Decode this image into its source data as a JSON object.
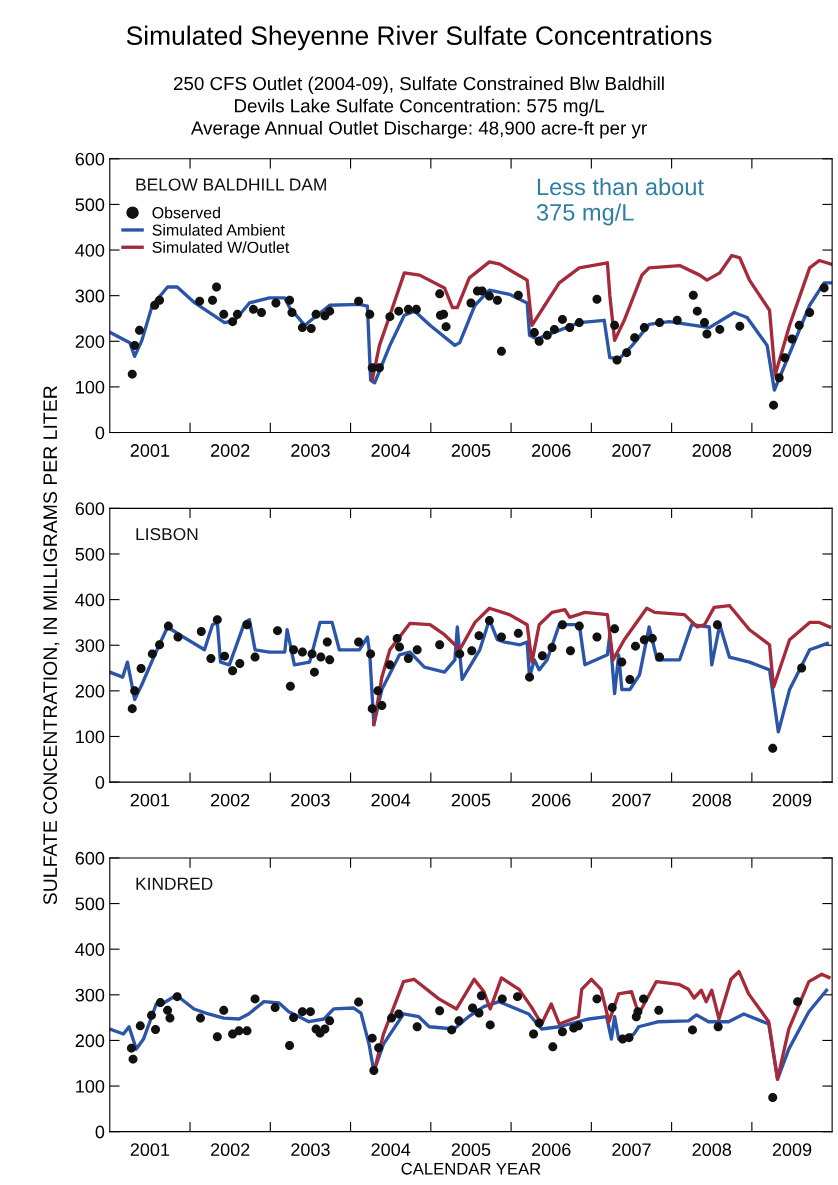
{
  "chart_data": [
    {
      "type": "line",
      "title": "Simulated Sheyenne River Sulfate Concentrations",
      "subtitle": "250 CFS Outlet (2004-09), Sulfate Constrained Blw Baldhill\nDevils Lake Sulfate Concentration: 575 mg/L\nAverage Annual Outlet Discharge: 48,900 acre-ft per yr",
      "annotations": [
        "BELOW BALDHILL DAM",
        "Less than about\n375 mg/L"
      ],
      "xlim": [
        2001,
        2010
      ],
      "ylim": [
        0,
        600
      ],
      "yticks": [
        0,
        100,
        200,
        300,
        400,
        500,
        600
      ],
      "xticks": [
        {
          "value": 2001.5,
          "label": "2001"
        },
        {
          "value": 2002,
          "label": null
        },
        {
          "value": 2002.5,
          "label": "2002"
        },
        {
          "value": 2003,
          "label": null
        },
        {
          "value": 2003.5,
          "label": "2003"
        },
        {
          "value": 2004,
          "label": null
        },
        {
          "value": 2004.5,
          "label": "2004"
        },
        {
          "value": 2005,
          "label": null
        },
        {
          "value": 2005.5,
          "label": "2005"
        },
        {
          "value": 2006,
          "label": null
        },
        {
          "value": 2006.5,
          "label": "2006"
        },
        {
          "value": 2007,
          "label": null
        },
        {
          "value": 2007.5,
          "label": "2007"
        },
        {
          "value": 2008,
          "label": null
        },
        {
          "value": 2008.5,
          "label": "2008"
        },
        {
          "value": 2009,
          "label": null
        },
        {
          "value": 2009.5,
          "label": "2009"
        }
      ],
      "grid": false,
      "legend": "top left",
      "series": [
        {
          "name": "Observed",
          "type": "scatter",
          "marker": "circle",
          "color": "#111111",
          "x": [
            2001.28,
            2001.31,
            2001.37,
            2001.56,
            2001.62,
            2002.12,
            2002.28,
            2002.33,
            2002.42,
            2002.53,
            2002.59,
            2002.79,
            2002.89,
            2003.07,
            2003.24,
            2003.27,
            2003.4,
            2003.51,
            2003.57,
            2003.68,
            2003.74,
            2004.1,
            2004.24,
            2004.27,
            2004.36,
            2004.49,
            2004.6,
            2004.72,
            2004.82,
            2005.11,
            2005.12,
            2005.16,
            2005.19,
            2005.5,
            2005.58,
            2005.64,
            2005.73,
            2005.83,
            2005.88,
            2006.09,
            2006.29,
            2006.35,
            2006.45,
            2006.54,
            2006.64,
            2006.73,
            2006.85,
            2007.07,
            2007.29,
            2007.32,
            2007.44,
            2007.54,
            2007.66,
            2007.85,
            2008.07,
            2008.27,
            2008.32,
            2008.41,
            2008.44,
            2008.6,
            2008.85,
            2009.27,
            2009.34,
            2009.41,
            2009.5,
            2009.59,
            2009.72,
            2009.9
          ],
          "values": [
            128,
            191,
            224,
            279,
            290,
            288,
            290,
            319,
            259,
            243,
            259,
            270,
            263,
            284,
            290,
            263,
            230,
            228,
            259,
            256,
            266,
            288,
            259,
            142,
            142,
            254,
            266,
            270,
            270,
            304,
            257,
            259,
            232,
            284,
            310,
            310,
            299,
            290,
            178,
            301,
            219,
            200,
            213,
            226,
            248,
            230,
            241,
            292,
            235,
            159,
            175,
            208,
            230,
            241,
            246,
            301,
            266,
            241,
            216,
            226,
            233,
            60,
            120,
            164,
            205,
            235,
            263,
            317
          ]
        },
        {
          "name": "Simulated Ambient",
          "color": "#2b55a8",
          "x": [
            2001.0,
            2001.25,
            2001.31,
            2001.4,
            2001.53,
            2001.72,
            2001.84,
            2002.06,
            2002.43,
            2002.56,
            2002.74,
            2002.99,
            2003.18,
            2003.24,
            2003.43,
            2003.55,
            2003.74,
            2004.11,
            2004.21,
            2004.25,
            2004.3,
            2004.49,
            2004.67,
            2004.8,
            2004.99,
            2005.3,
            2005.36,
            2005.55,
            2005.73,
            2005.98,
            2006.2,
            2006.23,
            2006.32,
            2006.6,
            2006.85,
            2007.16,
            2007.23,
            2007.35,
            2007.51,
            2007.72,
            2007.97,
            2008.47,
            2008.78,
            2008.94,
            2009.19,
            2009.28,
            2009.41,
            2009.72,
            2009.9,
            2009.99
          ],
          "values": [
            220,
            197,
            167,
            202,
            279,
            319,
            319,
            284,
            241,
            246,
            284,
            295,
            295,
            274,
            235,
            252,
            279,
            281,
            277,
            115,
            109,
            191,
            257,
            266,
            235,
            191,
            197,
            279,
            312,
            303,
            284,
            213,
            205,
            224,
            241,
            246,
            164,
            162,
            191,
            237,
            243,
            230,
            263,
            252,
            191,
            93,
            148,
            279,
            328,
            328
          ]
        },
        {
          "name": "Simulated W/Outlet",
          "color": "#a52a3a",
          "x": [
            2004.27,
            2004.36,
            2004.49,
            2004.67,
            2004.86,
            2005.17,
            2005.27,
            2005.33,
            2005.48,
            2005.73,
            2005.86,
            2006.2,
            2006.26,
            2006.42,
            2006.6,
            2006.85,
            2007.2,
            2007.23,
            2007.29,
            2007.41,
            2007.63,
            2007.72,
            2008.1,
            2008.35,
            2008.44,
            2008.6,
            2008.75,
            2008.85,
            2008.97,
            2009.22,
            2009.29,
            2009.47,
            2009.72,
            2009.84,
            2009.99
          ],
          "values": [
            115,
            191,
            257,
            350,
            345,
            317,
            274,
            274,
            339,
            374,
            369,
            334,
            235,
            279,
            328,
            361,
            372,
            301,
            202,
            246,
            345,
            361,
            366,
            345,
            334,
            350,
            388,
            383,
            334,
            268,
            126,
            235,
            361,
            377,
            369
          ]
        }
      ]
    },
    {
      "type": "line",
      "ylabel": "SULFATE CONCENTRATION, IN MILLIGRAMS PER LITER",
      "annotations": [
        "LISBON"
      ],
      "xlim": [
        2001,
        2010
      ],
      "ylim": [
        0,
        600
      ],
      "yticks": [
        0,
        100,
        200,
        300,
        400,
        500,
        600
      ],
      "xticks": [
        {
          "value": 2001.5,
          "label": "2001"
        },
        {
          "value": 2002,
          "label": null
        },
        {
          "value": 2002.5,
          "label": "2002"
        },
        {
          "value": 2003,
          "label": null
        },
        {
          "value": 2003.5,
          "label": "2003"
        },
        {
          "value": 2004,
          "label": null
        },
        {
          "value": 2004.5,
          "label": "2004"
        },
        {
          "value": 2005,
          "label": null
        },
        {
          "value": 2005.5,
          "label": "2005"
        },
        {
          "value": 2006,
          "label": null
        },
        {
          "value": 2006.5,
          "label": "2006"
        },
        {
          "value": 2007,
          "label": null
        },
        {
          "value": 2007.5,
          "label": "2007"
        },
        {
          "value": 2008,
          "label": null
        },
        {
          "value": 2008.5,
          "label": "2008"
        },
        {
          "value": 2009,
          "label": null
        },
        {
          "value": 2009.5,
          "label": "2009"
        }
      ],
      "grid": false,
      "series": [
        {
          "type": "scatter",
          "marker": "circle",
          "color": "#111111",
          "x": [
            2001.28,
            2001.31,
            2001.39,
            2001.53,
            2001.62,
            2001.73,
            2001.85,
            2002.14,
            2002.26,
            2002.34,
            2002.43,
            2002.53,
            2002.62,
            2002.71,
            2002.81,
            2003.09,
            2003.25,
            2003.29,
            2003.4,
            2003.52,
            2003.55,
            2003.63,
            2003.71,
            2003.74,
            2004.1,
            2004.25,
            2004.27,
            2004.34,
            2004.39,
            2004.49,
            2004.58,
            2004.61,
            2004.72,
            2004.83,
            2005.11,
            2005.36,
            2005.51,
            2005.6,
            2005.73,
            2005.88,
            2006.09,
            2006.23,
            2006.39,
            2006.51,
            2006.64,
            2006.74,
            2006.85,
            2007.07,
            2007.29,
            2007.38,
            2007.48,
            2007.55,
            2007.66,
            2007.76,
            2007.85,
            2008.57,
            2009.26,
            2009.62
          ],
          "values": [
            161,
            200,
            249,
            281,
            301,
            342,
            318,
            330,
            271,
            356,
            276,
            244,
            260,
            345,
            274,
            332,
            210,
            290,
            285,
            281,
            241,
            274,
            307,
            268,
            307,
            281,
            161,
            200,
            168,
            257,
            315,
            296,
            271,
            290,
            301,
            281,
            288,
            321,
            354,
            318,
            326,
            230,
            277,
            295,
            345,
            288,
            342,
            318,
            336,
            263,
            225,
            298,
            312,
            315,
            274,
            345,
            74,
            250
          ]
        },
        {
          "color": "#2b55a8",
          "x": [
            2001.0,
            2001.16,
            2001.22,
            2001.31,
            2001.4,
            2001.56,
            2001.72,
            2001.87,
            2002.18,
            2002.28,
            2002.34,
            2002.38,
            2002.49,
            2002.68,
            2002.74,
            2002.81,
            2002.99,
            2003.18,
            2003.21,
            2003.3,
            2003.49,
            2003.62,
            2003.77,
            2003.86,
            2004.11,
            2004.21,
            2004.24,
            2004.29,
            2004.39,
            2004.61,
            2004.74,
            2004.92,
            2005.17,
            2005.3,
            2005.33,
            2005.39,
            2005.61,
            2005.73,
            2005.83,
            2005.92,
            2006.11,
            2006.2,
            2006.23,
            2006.29,
            2006.35,
            2006.45,
            2006.6,
            2006.85,
            2006.92,
            2007.2,
            2007.23,
            2007.29,
            2007.34,
            2007.38,
            2007.48,
            2007.6,
            2007.72,
            2007.82,
            2008.1,
            2008.25,
            2008.47,
            2008.5,
            2008.6,
            2008.72,
            2008.97,
            2009.22,
            2009.33,
            2009.47,
            2009.72,
            2009.94
          ],
          "values": [
            241,
            230,
            263,
            181,
            214,
            279,
            340,
            323,
            290,
            345,
            350,
            263,
            257,
            350,
            356,
            290,
            285,
            285,
            334,
            257,
            263,
            350,
            350,
            290,
            290,
            318,
            279,
            126,
            203,
            279,
            285,
            252,
            241,
            268,
            340,
            225,
            290,
            356,
            312,
            307,
            301,
            307,
            230,
            268,
            246,
            268,
            345,
            345,
            257,
            279,
            323,
            194,
            279,
            203,
            203,
            235,
            340,
            268,
            268,
            345,
            340,
            257,
            345,
            274,
            263,
            246,
            110,
            203,
            290,
            304
          ]
        },
        {
          "color": "#a52a3a",
          "x": [
            2004.29,
            2004.39,
            2004.49,
            2004.74,
            2004.99,
            2005.17,
            2005.3,
            2005.36,
            2005.55,
            2005.73,
            2005.98,
            2006.2,
            2006.26,
            2006.35,
            2006.51,
            2006.67,
            2006.73,
            2006.92,
            2007.2,
            2007.27,
            2007.41,
            2007.69,
            2007.79,
            2008.16,
            2008.32,
            2008.41,
            2008.53,
            2008.72,
            2008.97,
            2009.22,
            2009.27,
            2009.47,
            2009.72,
            2009.84,
            2009.97
          ],
          "values": [
            126,
            230,
            290,
            348,
            345,
            323,
            301,
            290,
            350,
            381,
            367,
            345,
            263,
            345,
            372,
            378,
            361,
            372,
            367,
            268,
            312,
            381,
            372,
            367,
            340,
            345,
            383,
            387,
            334,
            301,
            208,
            312,
            350,
            350,
            340
          ]
        }
      ]
    },
    {
      "type": "line",
      "xlabel": "CALENDAR YEAR",
      "annotations": [
        "KINDRED"
      ],
      "xlim": [
        2001,
        2010
      ],
      "ylim": [
        0,
        600
      ],
      "yticks": [
        0,
        100,
        200,
        300,
        400,
        500,
        600
      ],
      "xticks": [
        {
          "value": 2001.5,
          "label": "2001"
        },
        {
          "value": 2002,
          "label": null
        },
        {
          "value": 2002.5,
          "label": "2002"
        },
        {
          "value": 2003,
          "label": null
        },
        {
          "value": 2003.5,
          "label": "2003"
        },
        {
          "value": 2004,
          "label": null
        },
        {
          "value": 2004.5,
          "label": "2004"
        },
        {
          "value": 2005,
          "label": null
        },
        {
          "value": 2005.5,
          "label": "2005"
        },
        {
          "value": 2006,
          "label": null
        },
        {
          "value": 2006.5,
          "label": "2006"
        },
        {
          "value": 2007,
          "label": null
        },
        {
          "value": 2007.5,
          "label": "2007"
        },
        {
          "value": 2008,
          "label": null
        },
        {
          "value": 2008.5,
          "label": "2008"
        },
        {
          "value": 2009,
          "label": null
        },
        {
          "value": 2009.5,
          "label": "2009"
        }
      ],
      "grid": false,
      "series": [
        {
          "type": "scatter",
          "marker": "circle",
          "color": "#111111",
          "x": [
            2001.27,
            2001.29,
            2001.38,
            2001.52,
            2001.57,
            2001.63,
            2001.72,
            2001.75,
            2001.84,
            2002.13,
            2002.34,
            2002.42,
            2002.53,
            2002.61,
            2002.67,
            2002.71,
            2002.81,
            2003.06,
            2003.24,
            2003.29,
            2003.4,
            2003.5,
            2003.57,
            2003.62,
            2003.68,
            2003.74,
            2004.1,
            2004.27,
            2004.29,
            2004.35,
            2004.51,
            2004.6,
            2004.83,
            2005.11,
            2005.26,
            2005.35,
            2005.52,
            2005.6,
            2005.63,
            2005.74,
            2005.89,
            2006.08,
            2006.28,
            2006.35,
            2006.52,
            2006.64,
            2006.78,
            2006.84,
            2007.07,
            2007.26,
            2007.39,
            2007.47,
            2007.56,
            2007.58,
            2007.65,
            2007.84,
            2008.26,
            2008.58,
            2009.26,
            2009.57
          ],
          "values": [
            183,
            159,
            232,
            255,
            224,
            283,
            266,
            249,
            296,
            249,
            208,
            266,
            214,
            221,
            null,
            221,
            291,
            272,
            189,
            250,
            263,
            263,
            225,
            216,
            225,
            243,
            284,
            205,
            134,
            184,
            249,
            258,
            230,
            265,
            223,
            243,
            271,
            260,
            298,
            234,
            291,
            296,
            214,
            238,
            186,
            219,
            227,
            232,
            291,
            272,
            203,
            206,
            252,
            263,
            291,
            266,
            223,
            230,
            75,
            285
          ]
        },
        {
          "color": "#2b55a8",
          "x": [
            2001.0,
            2001.17,
            2001.24,
            2001.33,
            2001.42,
            2001.58,
            2001.67,
            2001.83,
            2002.05,
            2002.23,
            2002.42,
            2002.61,
            2002.73,
            2002.92,
            2003.11,
            2003.23,
            2003.36,
            2003.48,
            2003.67,
            2003.79,
            2004.04,
            2004.13,
            2004.23,
            2004.29,
            2004.41,
            2004.66,
            2004.85,
            2004.98,
            2005.29,
            2005.47,
            2005.66,
            2005.85,
            2006.22,
            2006.38,
            2006.6,
            2006.97,
            2007.19,
            2007.25,
            2007.29,
            2007.34,
            2007.53,
            2007.59,
            2007.84,
            2008.21,
            2008.31,
            2008.46,
            2008.71,
            2008.9,
            2009.21,
            2009.32,
            2009.46,
            2009.71,
            2009.93
          ],
          "values": [
            225,
            214,
            230,
            181,
            203,
            280,
            282,
            299,
            269,
            258,
            249,
            247,
            258,
            285,
            282,
            263,
            252,
            241,
            247,
            269,
            271,
            260,
            192,
            132,
            192,
            258,
            252,
            230,
            225,
            252,
            274,
            285,
            258,
            225,
            230,
            247,
            252,
            203,
            252,
            203,
            214,
            230,
            241,
            243,
            256,
            241,
            241,
            258,
            236,
            115,
            181,
            263,
            310
          ]
        },
        {
          "color": "#a52a3a",
          "x": [
            2004.3,
            2004.41,
            2004.66,
            2004.79,
            2005.1,
            2005.32,
            2005.54,
            2005.66,
            2005.74,
            2005.88,
            2006.1,
            2006.25,
            2006.38,
            2006.5,
            2006.6,
            2006.84,
            2006.88,
            2007.0,
            2007.12,
            2007.22,
            2007.34,
            2007.5,
            2007.59,
            2007.81,
            2008.09,
            2008.21,
            2008.28,
            2008.37,
            2008.43,
            2008.5,
            2008.59,
            2008.74,
            2008.84,
            2008.96,
            2009.21,
            2009.32,
            2009.46,
            2009.71,
            2009.87,
            2009.96
          ],
          "values": [
            137,
            214,
            329,
            334,
            291,
            269,
            334,
            307,
            269,
            337,
            312,
            274,
            236,
            280,
            236,
            252,
            312,
            334,
            312,
            241,
            302,
            307,
            258,
            329,
            323,
            312,
            293,
            310,
            285,
            310,
            247,
            334,
            351,
            302,
            241,
            115,
            225,
            329,
            345,
            338
          ]
        }
      ]
    }
  ]
}
